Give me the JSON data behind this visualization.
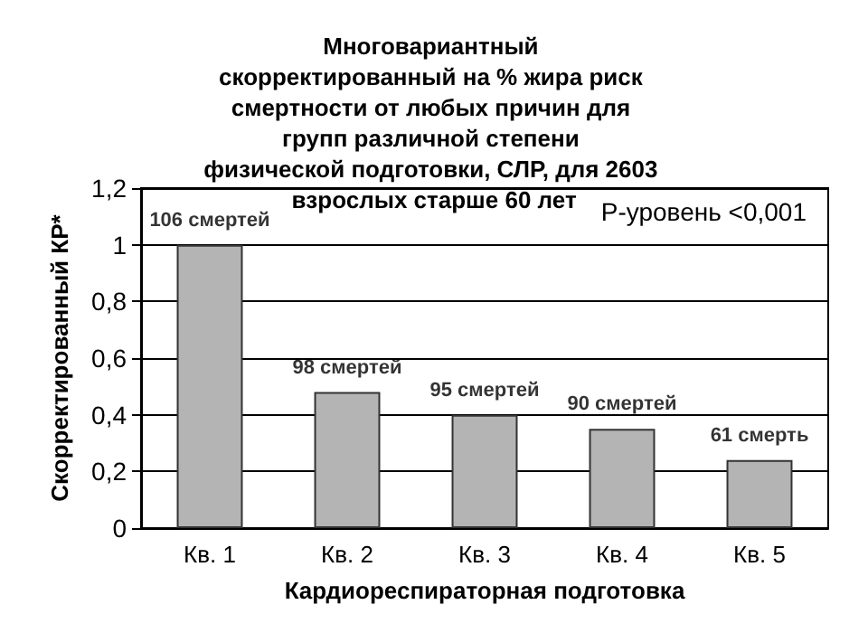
{
  "chart_data": {
    "type": "bar",
    "title": "Многовариантный скорректированный на % жира риск смертности от любых причин для групп различной степени физической подготовки, СЛР, для 2603 взрослых старше 60 лет",
    "xlabel": "Кардиореспираторная подготовка",
    "ylabel": "Скорректированный КР*",
    "categories": [
      "Кв. 1",
      "Кв. 2",
      "Кв. 3",
      "Кв. 4",
      "Кв. 5"
    ],
    "values": [
      1,
      0.48,
      0.4,
      0.35,
      0.24
    ],
    "color": "#b4b4b4",
    "ylim": [
      0,
      1.2
    ],
    "yticks": [
      0,
      {
        "value": 0.2,
        "label": "0,2"
      },
      {
        "value": 0.4,
        "label": "0,4"
      },
      {
        "value": 0.6,
        "label": "0,6"
      },
      {
        "value": 0.8,
        "label": "0,8"
      },
      1,
      {
        "value": 1.2,
        "label": "1,2"
      }
    ],
    "grid": "y",
    "annotations": [
      "P-уровень <0,001",
      {
        "text": "106 смертей",
        "x": "Кв. 1",
        "y": 1
      },
      {
        "text": "98 смертей",
        "x": "Кв. 2",
        "y": 0.48
      },
      {
        "text": "95 смертей",
        "x": "Кв. 3",
        "y": 0.4
      },
      {
        "text": "90 смертей",
        "x": "Кв. 4",
        "y": 0.35
      },
      {
        "text": "61 смерть",
        "x": "Кв. 5",
        "y": 0.24
      }
    ]
  }
}
